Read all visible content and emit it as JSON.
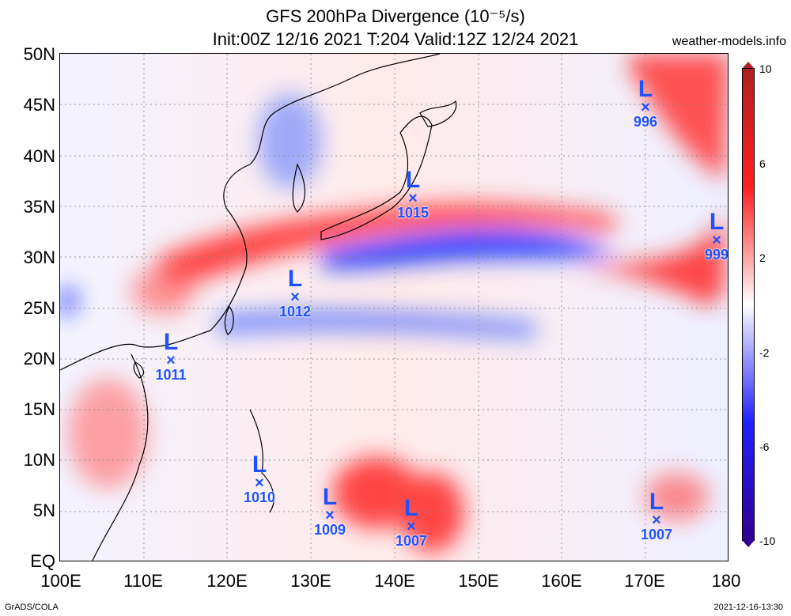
{
  "title": {
    "line1": "GFS 200hPa Divergence (10⁻⁵/s)",
    "line2": "Init:00Z 12/16 2021 T:204 Valid:12Z 12/24 2021"
  },
  "site": "weather-models.info",
  "footer": {
    "left": "GrADS/COLA",
    "right": "2021-12-16-13:30"
  },
  "axes": {
    "lat_labels": [
      "50N",
      "45N",
      "40N",
      "35N",
      "30N",
      "25N",
      "20N",
      "15N",
      "10N",
      "5N",
      "EQ"
    ],
    "lon_labels": [
      "100E",
      "110E",
      "120E",
      "130E",
      "140E",
      "150E",
      "160E",
      "170E",
      "180"
    ]
  },
  "colorbar": {
    "labels": [
      "10",
      "6",
      "2",
      "-2",
      "-6",
      "-10"
    ],
    "max_color": "#b02020",
    "min_color": "#300090"
  },
  "lows": [
    {
      "letter": "L",
      "mark": "×",
      "pressure": "996"
    },
    {
      "letter": "L",
      "mark": "×",
      "pressure": "1015"
    },
    {
      "letter": "L",
      "mark": "×",
      "pressure": "999"
    },
    {
      "letter": "L",
      "mark": "×",
      "pressure": "1012"
    },
    {
      "letter": "L",
      "mark": "×",
      "pressure": "1011"
    },
    {
      "letter": "L",
      "mark": "×",
      "pressure": "1010"
    },
    {
      "letter": "L",
      "mark": "×",
      "pressure": "1009"
    },
    {
      "letter": "L",
      "mark": "×",
      "pressure": "1007"
    },
    {
      "letter": "L",
      "mark": "×",
      "pressure": "1007"
    }
  ],
  "colors": {
    "divergence": "#ff2020",
    "convergence": "#2020ff",
    "low_marker": "#2050ff"
  }
}
